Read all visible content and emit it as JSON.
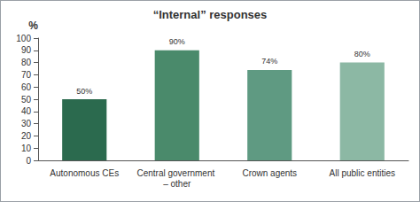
{
  "chart_data": {
    "type": "bar",
    "title": "“Internal” responses",
    "ylabel": "%",
    "categories": [
      "Autonomous CEs",
      "Central government – other",
      "Crown agents",
      "All public entities"
    ],
    "values": [
      50,
      90,
      74,
      80
    ],
    "value_labels": [
      "50%",
      "90%",
      "74%",
      "80%"
    ],
    "colors": [
      "#2b6a4e",
      "#4a8a6b",
      "#5f9a82",
      "#8cb8a4"
    ],
    "ylim": [
      0,
      100
    ],
    "yticks": [
      0,
      10,
      20,
      30,
      40,
      50,
      60,
      70,
      80,
      90,
      100
    ],
    "grid": false,
    "data_labels": true
  }
}
